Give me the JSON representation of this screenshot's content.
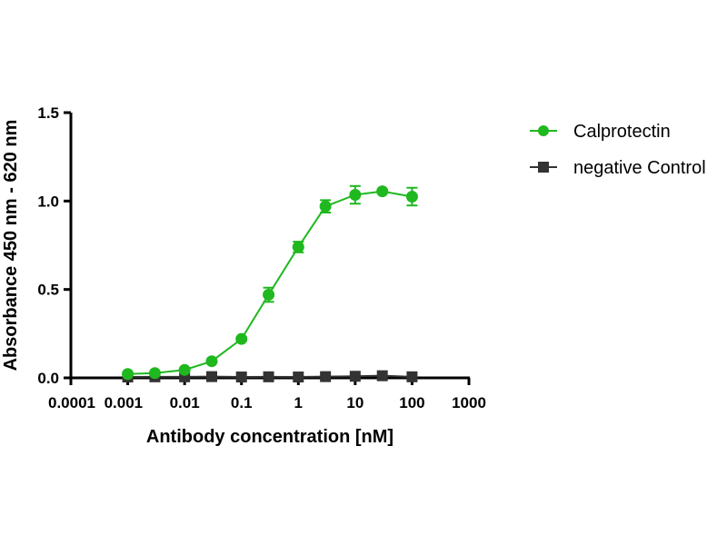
{
  "chart_data": {
    "type": "line",
    "title": "",
    "xlabel": "Antibody concentration [nM]",
    "ylabel": "Absorbance 450 nm - 620 nm",
    "xscale": "log",
    "xlim": [
      0.0001,
      1000
    ],
    "ylim": [
      0,
      1.5
    ],
    "x_ticks": [
      0.0001,
      0.001,
      0.01,
      0.1,
      1,
      10,
      100,
      1000
    ],
    "x_tick_labels": [
      "0.0001",
      "0.001",
      "0.01",
      "0.1",
      "1",
      "10",
      "100",
      "1000"
    ],
    "y_ticks": [
      0,
      0.5,
      1.0,
      1.5
    ],
    "y_tick_labels": [
      "0.0",
      "0.5",
      "1.0",
      "1.5"
    ],
    "grid": false,
    "legend_position": "right",
    "x": [
      0.001,
      0.003,
      0.01,
      0.03,
      0.1,
      0.3,
      1,
      3,
      10,
      30,
      100
    ],
    "series": [
      {
        "name": "Calprotectin",
        "color": "#1fb81f",
        "marker": "circle",
        "values": [
          0.022,
          0.027,
          0.045,
          0.094,
          0.22,
          0.47,
          0.74,
          0.97,
          1.035,
          1.055,
          1.025
        ],
        "errors": [
          0.005,
          0.005,
          0.005,
          0.005,
          0.01,
          0.04,
          0.03,
          0.035,
          0.05,
          0.01,
          0.05
        ]
      },
      {
        "name": "negative Control",
        "color": "#333333",
        "marker": "square",
        "values": [
          0.005,
          0.006,
          0.006,
          0.007,
          0.005,
          0.006,
          0.005,
          0.007,
          0.009,
          0.012,
          0.006
        ],
        "errors": [
          0,
          0,
          0,
          0,
          0,
          0,
          0,
          0,
          0,
          0,
          0
        ]
      }
    ]
  }
}
